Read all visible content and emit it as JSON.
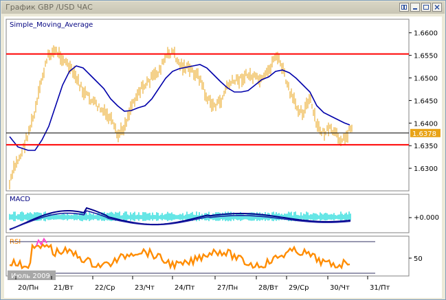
{
  "window": {
    "title": "График GBP /USD  ЧАС",
    "buttons": [
      "tile-icon",
      "minimize-icon",
      "restore-icon",
      "close-icon"
    ]
  },
  "chart_data": [
    {
      "type": "bar",
      "title": "Simple_Moving_Average",
      "yticks": [
        "1.6600",
        "1.6550",
        "1.6500",
        "1.6450",
        "1.6400",
        "1.6350",
        "1.6300"
      ],
      "ylim": [
        1.625,
        1.663
      ],
      "levels": [
        1.6553,
        1.6352
      ],
      "current_price": "1.6378",
      "current_value": 1.6378,
      "price_color": "#e8a317",
      "ma_color": "#0000aa",
      "level_color": "#ff0000"
    },
    {
      "type": "line",
      "title": "MACD",
      "yticks": [
        "+0.000"
      ],
      "colors": [
        "#00008b",
        "#00ffff"
      ]
    },
    {
      "type": "line",
      "title": "RSI",
      "yticks": [
        "50"
      ],
      "color": "#ff8c00"
    }
  ],
  "x_axis": {
    "labels": [
      "20/Пн",
      "21/Вт",
      "22/Ср",
      "23/Чт",
      "24/Пт",
      "27/Пн",
      "28/Вт",
      "29/Ср",
      "30/Чт",
      "31/Пт"
    ],
    "period_badge": "Июль 2009"
  }
}
